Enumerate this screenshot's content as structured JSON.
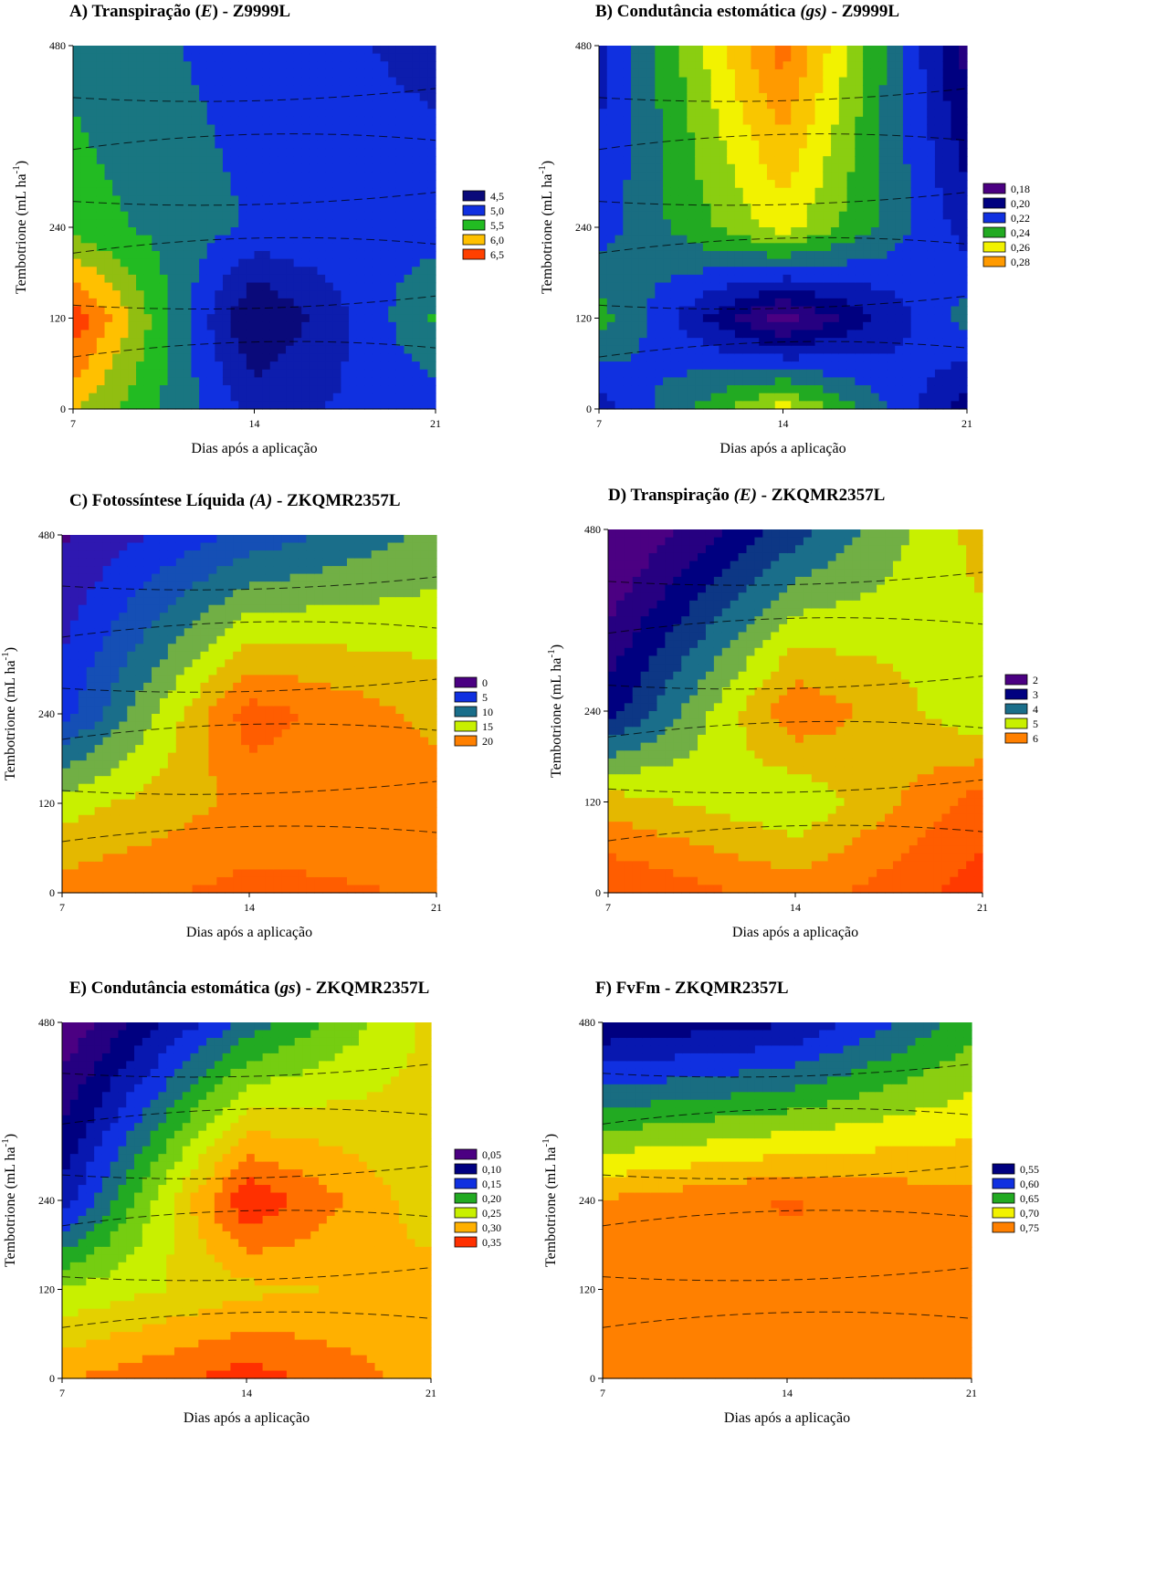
{
  "figure": {
    "chart_data": [
      {
        "type": "heatmap",
        "title": {
          "prefix": "A) Transpiração (",
          "var": "E",
          "suffix": ") - Z9999L",
          "var_italic": true
        },
        "xlabel": "Dias após a aplicação",
        "ylabel": "Tembotrione (mL ha-1)",
        "x": [
          7,
          14,
          21
        ],
        "y": [
          0,
          120,
          240,
          480
        ],
        "xlim": [
          7,
          21
        ],
        "ylim": [
          0,
          480
        ],
        "x_ticks": [
          "7",
          "14",
          "21"
        ],
        "y_ticks": [
          "0",
          "120",
          "240",
          "480"
        ],
        "z": [
          [
            5.9,
            4.8,
            5.0
          ],
          [
            6.6,
            4.3,
            5.4
          ],
          [
            5.5,
            5.1,
            5.0
          ],
          [
            5.3,
            5.0,
            4.8
          ]
        ],
        "legend": {
          "position": "right",
          "labels": [
            "4,5",
            "5,0",
            "5,5",
            "6,0",
            "6,5"
          ],
          "colors": [
            "#0a0a7a",
            "#1030e0",
            "#22bb22",
            "#ffc000",
            "#ff4000"
          ]
        }
      },
      {
        "type": "heatmap",
        "title": {
          "prefix": "B) Condutância estomática ",
          "var": "(gs)",
          "suffix": " - Z9999L",
          "var_italic": true
        },
        "xlabel": "Dias após a aplicação",
        "ylabel": "Tembotrione (mL ha-1)",
        "x": [
          7,
          14,
          21
        ],
        "y": [
          0,
          120,
          240,
          480
        ],
        "xlim": [
          7,
          21
        ],
        "ylim": [
          0,
          480
        ],
        "x_ticks": [
          "7",
          "14",
          "21"
        ],
        "y_ticks": [
          "0",
          "120",
          "240",
          "480"
        ],
        "z": [
          [
            0.21,
            0.26,
            0.2
          ],
          [
            0.24,
            0.18,
            0.23
          ],
          [
            0.22,
            0.26,
            0.21
          ],
          [
            0.21,
            0.29,
            0.19
          ]
        ],
        "legend": {
          "position": "right",
          "labels": [
            "0,18",
            "0,20",
            "0,22",
            "0,24",
            "0,26",
            "0,28"
          ],
          "colors": [
            "#4b0082",
            "#000080",
            "#1030e0",
            "#22aa22",
            "#f2f200",
            "#ff9a00"
          ]
        }
      },
      {
        "type": "heatmap",
        "title": {
          "prefix": "C) Fotossíntese Líquida ",
          "var": "(A)",
          "suffix": " - ZKQMR2357L",
          "var_italic": true
        },
        "xlabel": "Dias após a aplicação",
        "ylabel": "Tembotrione (mL ha-1)",
        "x": [
          7,
          14,
          21
        ],
        "y": [
          0,
          120,
          240,
          480
        ],
        "xlim": [
          7,
          21
        ],
        "ylim": [
          0,
          480
        ],
        "x_ticks": [
          "7",
          "14",
          "21"
        ],
        "y_ticks": [
          "0",
          "120",
          "240",
          "480"
        ],
        "z": [
          [
            20.0,
            22.0,
            21.0
          ],
          [
            15.0,
            19.5,
            20.0
          ],
          [
            5.0,
            22.5,
            18.0
          ],
          [
            1.0,
            7.0,
            12.0
          ]
        ],
        "legend": {
          "position": "right",
          "labels": [
            "0",
            "5",
            "10",
            "15",
            "20"
          ],
          "colors": [
            "#4b0082",
            "#1030e0",
            "#1a6e8a",
            "#c8f000",
            "#ff8000"
          ]
        }
      },
      {
        "type": "heatmap",
        "title": {
          "prefix": "D) Transpiração ",
          "var": "(E)",
          "suffix": " - ZKQMR2357L",
          "var_italic": true
        },
        "xlabel": "Dias após a aplicação",
        "ylabel": "Tembotrione (mL ha-1)",
        "x": [
          7,
          14,
          21
        ],
        "y": [
          0,
          120,
          240,
          480
        ],
        "xlim": [
          7,
          21
        ],
        "ylim": [
          0,
          480
        ],
        "x_ticks": [
          "7",
          "14",
          "21"
        ],
        "y_ticks": [
          "0",
          "120",
          "240",
          "480"
        ],
        "z": [
          [
            6.8,
            6.0,
            7.0
          ],
          [
            5.5,
            4.8,
            6.5
          ],
          [
            3.0,
            6.2,
            4.8
          ],
          [
            1.5,
            3.5,
            5.5
          ]
        ],
        "legend": {
          "position": "right",
          "labels": [
            "2",
            "3",
            "4",
            "5",
            "6"
          ],
          "colors": [
            "#4b0082",
            "#000080",
            "#1a6e8a",
            "#c8f000",
            "#ff8000"
          ]
        }
      },
      {
        "type": "heatmap",
        "title": {
          "prefix": "E) Condutância estomática (",
          "var": "gs",
          "suffix": ") - ZKQMR2357L",
          "var_italic": true
        },
        "xlabel": "Dias após a aplicação",
        "ylabel": "Tembotrione (mL ha-1)",
        "x": [
          7,
          14,
          21
        ],
        "y": [
          0,
          120,
          240,
          480
        ],
        "xlim": [
          7,
          21
        ],
        "ylim": [
          0,
          480
        ],
        "x_ticks": [
          "7",
          "14",
          "21"
        ],
        "y_ticks": [
          "0",
          "120",
          "240",
          "480"
        ],
        "z": [
          [
            0.31,
            0.35,
            0.3
          ],
          [
            0.24,
            0.28,
            0.3
          ],
          [
            0.12,
            0.36,
            0.27
          ],
          [
            0.04,
            0.17,
            0.27
          ]
        ],
        "legend": {
          "position": "right",
          "labels": [
            "0,05",
            "0,10",
            "0,15",
            "0,20",
            "0,25",
            "0,30",
            "0,35"
          ],
          "colors": [
            "#4b0082",
            "#000080",
            "#1030e0",
            "#22aa22",
            "#c8f000",
            "#ffb000",
            "#ff3000"
          ]
        }
      },
      {
        "type": "heatmap",
        "title": {
          "prefix": "F) FvFm - ZKQMR2357L",
          "var": "",
          "suffix": "",
          "var_italic": false
        },
        "xlabel": "Dias após a aplicação",
        "ylabel": "Tembotrione (mL ha-1)",
        "x": [
          7,
          14,
          21
        ],
        "y": [
          0,
          120,
          240,
          480
        ],
        "xlim": [
          7,
          21
        ],
        "ylim": [
          0,
          480
        ],
        "x_ticks": [
          "7",
          "14",
          "21"
        ],
        "y_ticks": [
          "0",
          "120",
          "240",
          "480"
        ],
        "z": [
          [
            0.752,
            0.75,
            0.745
          ],
          [
            0.755,
            0.755,
            0.748
          ],
          [
            0.74,
            0.765,
            0.745
          ],
          [
            0.54,
            0.56,
            0.65
          ]
        ],
        "legend": {
          "position": "right",
          "labels": [
            "0,55",
            "0,60",
            "0,65",
            "0,70",
            "0,75"
          ],
          "colors": [
            "#000080",
            "#1030e0",
            "#22aa22",
            "#f2f200",
            "#ff8000"
          ]
        }
      }
    ]
  }
}
